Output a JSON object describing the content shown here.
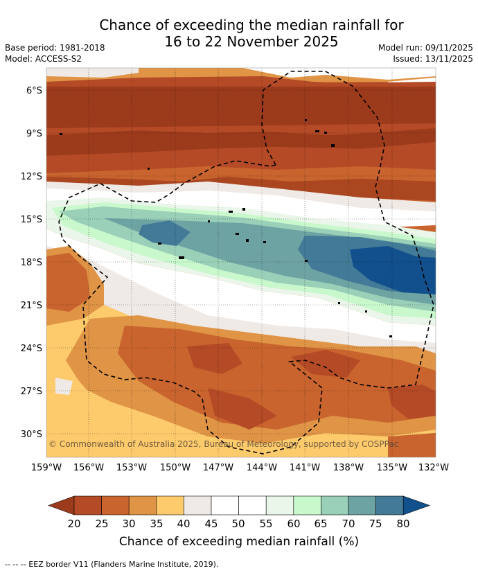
{
  "title_line1": "Chance of exceeding the median rainfall for",
  "title_line2": "16 to 22 November 2025",
  "base_period": "Base period: 1981-2018",
  "model": "Model: ACCESS-S2",
  "model_run": "Model run: 09/11/2025",
  "issued": "Issued: 13/11/2025",
  "lat_labels": [
    "6°S",
    "9°S",
    "12°S",
    "15°S",
    "18°S",
    "21°S",
    "24°S",
    "27°S",
    "30°S"
  ],
  "lon_labels": [
    "159°W",
    "156°W",
    "153°W",
    "150°W",
    "147°W",
    "144°W",
    "141°W",
    "138°W",
    "135°W",
    "132°W"
  ],
  "colorbar": {
    "ticks": [
      "20",
      "25",
      "30",
      "35",
      "40",
      "45",
      "50",
      "55",
      "60",
      "65",
      "70",
      "75",
      "80"
    ],
    "colors": [
      "#9c3a1c",
      "#b54a26",
      "#c9642e",
      "#df9446",
      "#fdca6c",
      "#efeae6",
      "#ffffff",
      "#ffffff",
      "#e9f6e9",
      "#c8f8cc",
      "#9acfb8",
      "#6ea3a4",
      "#437a97",
      "#11508d"
    ],
    "label": "Chance of exceeding median rainfall (%)"
  },
  "copyright": "© Commonwealth of Australia 2025, Bureau of Meteorology, supported by COSPPac",
  "footer": "--  --  -- EEZ border V11 (Flanders Marine Institute, 2019)."
}
